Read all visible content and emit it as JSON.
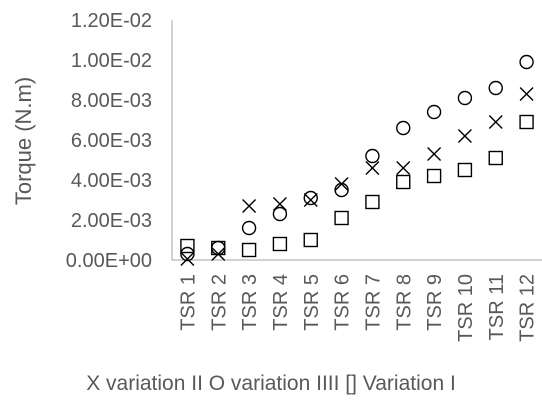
{
  "chart_data": {
    "type": "scatter",
    "title": "",
    "xlabel": "X variation II O variation IIII [] Variation I",
    "ylabel": "Torque (N.m)",
    "categories": [
      "TSR 1",
      "TSR 2",
      "TSR 3",
      "TSR 4",
      "TSR 5",
      "TSR 6",
      "TSR 7",
      "TSR 8",
      "TSR 9",
      "TSR 10",
      "TSR 11",
      "TSR 12"
    ],
    "yticks": [
      "0.00E+00",
      "2.00E-03",
      "4.00E-03",
      "6.00E-03",
      "8.00E-03",
      "1.00E-02",
      "1.20E-02"
    ],
    "ylim": [
      0,
      0.012
    ],
    "grid": false,
    "series": [
      {
        "marker": "x",
        "values": [
          5e-05,
          0.0003,
          0.0027,
          0.0028,
          0.003,
          0.0038,
          0.0046,
          0.0046,
          0.0053,
          0.0062,
          0.0069,
          0.0083
        ]
      },
      {
        "marker": "circle",
        "values": [
          0.0003,
          0.0006,
          0.0016,
          0.0023,
          0.0031,
          0.0035,
          0.0052,
          0.0066,
          0.0074,
          0.0081,
          0.0086,
          0.0099
        ]
      },
      {
        "marker": "square",
        "values": [
          0.0007,
          0.0006,
          0.0005,
          0.0008,
          0.001,
          0.0021,
          0.0029,
          0.0039,
          0.0042,
          0.0045,
          0.0051,
          0.0069
        ]
      }
    ]
  }
}
